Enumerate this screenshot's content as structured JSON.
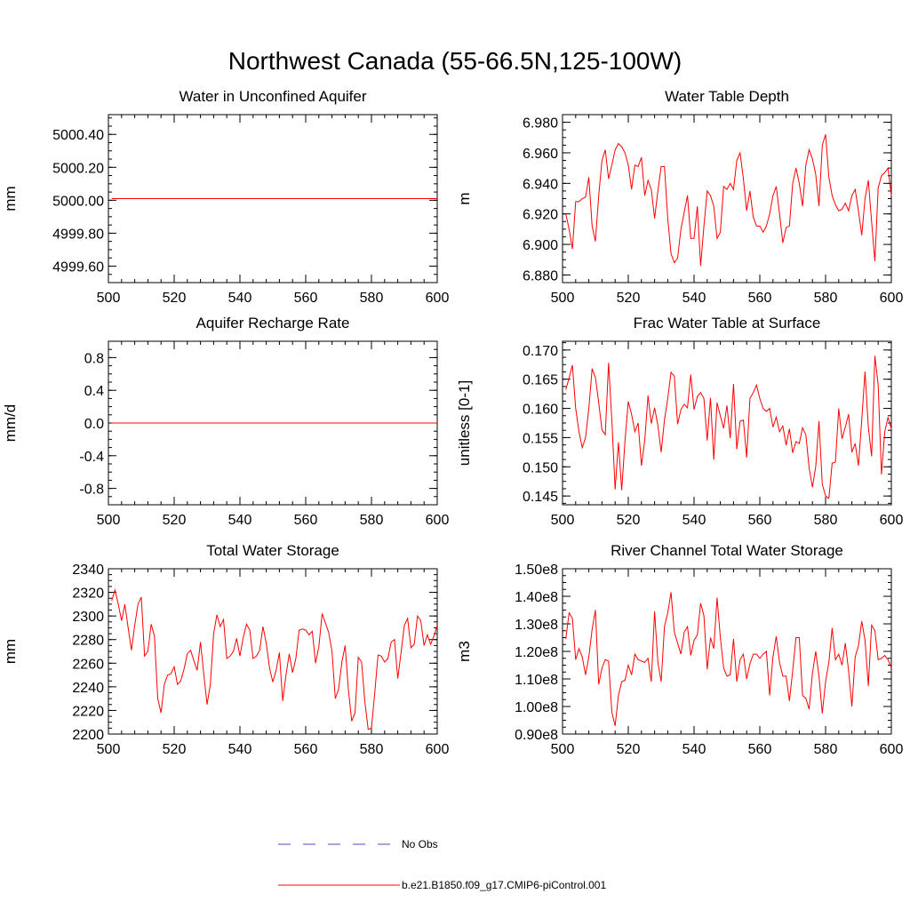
{
  "figure_title": "Northwest Canada (55-66.5N,125-100W)",
  "colors": {
    "model": "#ff0000",
    "obs": "#4b4bcc",
    "axis": "#000000"
  },
  "legend": {
    "obs_label": "No Obs",
    "model_label": "b.e21.B1850.f09_g17.CMIP6-piControl.001"
  },
  "chart_data": [
    {
      "type": "line",
      "title": "Water in Unconfined Aquifer",
      "xlabel": "",
      "ylabel": "mm",
      "xlim": [
        500,
        600
      ],
      "ylim": [
        4999.5,
        5000.52
      ],
      "xticks": [
        500,
        520,
        540,
        560,
        580,
        600
      ],
      "yticks": [
        4999.6,
        4999.8,
        5000.0,
        5000.2,
        5000.4
      ],
      "ytick_labels": [
        "4999.60",
        "4999.80",
        "5000.00",
        "5000.20",
        "5000.40"
      ],
      "series": [
        {
          "name": "b.e21.B1850.f09_g17.CMIP6-piControl.001",
          "x_start": 501,
          "x_step": 1,
          "constant": 5000.01,
          "count": 100
        }
      ]
    },
    {
      "type": "line",
      "title": "Water Table Depth",
      "xlabel": "",
      "ylabel": "m",
      "xlim": [
        500,
        600
      ],
      "ylim": [
        6.875,
        6.985
      ],
      "xticks": [
        500,
        520,
        540,
        560,
        580,
        600
      ],
      "yticks": [
        6.88,
        6.9,
        6.92,
        6.94,
        6.96,
        6.98
      ],
      "ytick_labels": [
        "6.880",
        "6.900",
        "6.920",
        "6.940",
        "6.960",
        "6.980"
      ],
      "series": [
        {
          "name": "b.e21.B1850.f09_g17.CMIP6-piControl.001",
          "x_start": 501,
          "x_step": 1,
          "values": [
            6.92,
            6.91,
            6.897,
            6.928,
            6.928,
            6.93,
            6.931,
            6.944,
            6.912,
            6.902,
            6.932,
            6.955,
            6.962,
            6.943,
            6.952,
            6.962,
            6.966,
            6.964,
            6.96,
            6.952,
            6.936,
            6.952,
            6.951,
            6.957,
            6.932,
            6.942,
            6.936,
            6.917,
            6.935,
            6.951,
            6.951,
            6.917,
            6.894,
            6.888,
            6.891,
            6.91,
            6.921,
            6.932,
            6.904,
            6.904,
            6.925,
            6.886,
            6.912,
            6.935,
            6.932,
            6.925,
            6.904,
            6.908,
            6.938,
            6.936,
            6.94,
            6.936,
            6.955,
            6.96,
            6.943,
            6.922,
            6.935,
            6.918,
            6.912,
            6.912,
            6.908,
            6.912,
            6.92,
            6.932,
            6.938,
            6.92,
            6.901,
            6.911,
            6.912,
            6.94,
            6.95,
            6.94,
            6.925,
            6.952,
            6.962,
            6.956,
            6.946,
            6.925,
            6.965,
            6.972,
            6.944,
            6.932,
            6.926,
            6.922,
            6.923,
            6.927,
            6.922,
            6.932,
            6.936,
            6.922,
            6.906,
            6.93,
            6.942,
            6.915,
            6.889,
            6.937,
            6.945,
            6.947,
            6.95,
            6.932
          ]
        }
      ]
    },
    {
      "type": "line",
      "title": "Aquifer Recharge Rate",
      "xlabel": "",
      "ylabel": "mm/d",
      "xlim": [
        500,
        600
      ],
      "ylim": [
        -1.0,
        1.0
      ],
      "xticks": [
        500,
        520,
        540,
        560,
        580,
        600
      ],
      "yticks": [
        -0.8,
        -0.4,
        0.0,
        0.4,
        0.8
      ],
      "ytick_labels": [
        "-0.8",
        "-0.4",
        "0.0",
        "0.4",
        "0.8"
      ],
      "series": [
        {
          "name": "b.e21.B1850.f09_g17.CMIP6-piControl.001",
          "x_start": 501,
          "x_step": 1,
          "constant": 0.0,
          "count": 100
        }
      ]
    },
    {
      "type": "line",
      "title": "Frac Water Table at Surface",
      "xlabel": "",
      "ylabel": "unitless [0-1]",
      "xlim": [
        500,
        600
      ],
      "ylim": [
        0.1435,
        0.1715
      ],
      "xticks": [
        500,
        520,
        540,
        560,
        580,
        600
      ],
      "yticks": [
        0.145,
        0.15,
        0.155,
        0.16,
        0.165,
        0.17
      ],
      "ytick_labels": [
        "0.145",
        "0.150",
        "0.155",
        "0.160",
        "0.165",
        "0.170"
      ],
      "series": [
        {
          "name": "b.e21.B1850.f09_g17.CMIP6-piControl.001",
          "x_start": 501,
          "x_step": 1,
          "values": [
            0.1632,
            0.1652,
            0.1674,
            0.16,
            0.156,
            0.1533,
            0.155,
            0.16,
            0.1668,
            0.1653,
            0.161,
            0.1563,
            0.1555,
            0.1678,
            0.158,
            0.1461,
            0.1542,
            0.146,
            0.1545,
            0.1612,
            0.159,
            0.156,
            0.1575,
            0.1502,
            0.1545,
            0.1622,
            0.1574,
            0.1601,
            0.1571,
            0.1525,
            0.158,
            0.1617,
            0.1662,
            0.1655,
            0.1573,
            0.1598,
            0.1607,
            0.1601,
            0.1658,
            0.1598,
            0.162,
            0.1627,
            0.1617,
            0.1545,
            0.1618,
            0.1512,
            0.161,
            0.1587,
            0.1566,
            0.1605,
            0.1549,
            0.1642,
            0.153,
            0.1578,
            0.158,
            0.1516,
            0.1617,
            0.1627,
            0.164,
            0.1617,
            0.16,
            0.1595,
            0.16,
            0.1568,
            0.1585,
            0.156,
            0.157,
            0.1537,
            0.1565,
            0.1524,
            0.1543,
            0.154,
            0.1567,
            0.1555,
            0.1498,
            0.1465,
            0.15,
            0.1578,
            0.147,
            0.145,
            0.1446,
            0.1506,
            0.1508,
            0.16,
            0.1548,
            0.1568,
            0.159,
            0.1525,
            0.154,
            0.1502,
            0.158,
            0.1663,
            0.1568,
            0.1518,
            0.169,
            0.164,
            0.1487,
            0.156,
            0.1585,
            0.1565
          ]
        }
      ]
    },
    {
      "type": "line",
      "title": "Total Water Storage",
      "xlabel": "",
      "ylabel": "mm",
      "xlim": [
        500,
        600
      ],
      "ylim": [
        2200,
        2340
      ],
      "xticks": [
        500,
        520,
        540,
        560,
        580,
        600
      ],
      "yticks": [
        2200,
        2220,
        2240,
        2260,
        2280,
        2300,
        2320,
        2340
      ],
      "ytick_labels": [
        "2200",
        "2220",
        "2240",
        "2260",
        "2280",
        "2300",
        "2320",
        "2340"
      ],
      "series": [
        {
          "name": "b.e21.B1850.f09_g17.CMIP6-piControl.001",
          "x_start": 501,
          "x_step": 1,
          "values": [
            2313,
            2322,
            2310,
            2296,
            2310,
            2290,
            2271,
            2292,
            2310,
            2316,
            2266,
            2270,
            2293,
            2283,
            2230,
            2218,
            2242,
            2250,
            2251,
            2257,
            2242,
            2245,
            2255,
            2268,
            2271,
            2262,
            2254,
            2278,
            2251,
            2225,
            2242,
            2285,
            2301,
            2291,
            2297,
            2264,
            2266,
            2270,
            2281,
            2266,
            2282,
            2293,
            2288,
            2264,
            2266,
            2271,
            2291,
            2277,
            2256,
            2244,
            2254,
            2269,
            2228,
            2250,
            2268,
            2252,
            2264,
            2288,
            2289,
            2288,
            2284,
            2287,
            2260,
            2274,
            2302,
            2294,
            2286,
            2270,
            2230,
            2238,
            2261,
            2275,
            2237,
            2211,
            2218,
            2265,
            2261,
            2227,
            2204,
            2205,
            2235,
            2267,
            2266,
            2261,
            2264,
            2278,
            2280,
            2247,
            2269,
            2292,
            2298,
            2273,
            2276,
            2300,
            2296,
            2275,
            2284,
            2276,
            2283,
            2292
          ]
        }
      ]
    },
    {
      "type": "line",
      "title": "River Channel Total Water Storage",
      "xlabel": "",
      "ylabel": "m3",
      "xlim": [
        500,
        600
      ],
      "ylim": [
        90000000,
        150000000
      ],
      "xticks": [
        500,
        520,
        540,
        560,
        580,
        600
      ],
      "yticks": [
        90000000,
        100000000,
        110000000,
        120000000,
        130000000,
        140000000,
        150000000
      ],
      "ytick_labels": [
        "0.90e8",
        "1.00e8",
        "1.10e8",
        "1.20e8",
        "1.30e8",
        "1.40e8",
        "1.50e8"
      ],
      "series": [
        {
          "name": "b.e21.B1850.f09_g17.CMIP6-piControl.001",
          "x_start": 501,
          "x_step": 1,
          "values": [
            124500000,
            134000000,
            132000000,
            117000000,
            121000000,
            118000000,
            111500000,
            118000000,
            128000000,
            135000000,
            108000000,
            114000000,
            117000000,
            116500000,
            98000000,
            93000000,
            104000000,
            109000000,
            109500000,
            115000000,
            111500000,
            119000000,
            117000000,
            116500000,
            116000000,
            117500000,
            109000000,
            134500000,
            116000000,
            109000000,
            129000000,
            134000000,
            141500000,
            127000000,
            123000000,
            119000000,
            127000000,
            129000000,
            118500000,
            124000000,
            126000000,
            137500000,
            133000000,
            113500000,
            125000000,
            121000000,
            139500000,
            125000000,
            114000000,
            111000000,
            111500000,
            124500000,
            109000000,
            117000000,
            119000000,
            110000000,
            115500000,
            119000000,
            119000000,
            117500000,
            119000000,
            120000000,
            104000000,
            118000000,
            125500000,
            116000000,
            111000000,
            111000000,
            102000000,
            113000000,
            125000000,
            125000000,
            104000000,
            103000000,
            99000000,
            112000000,
            120000000,
            111000000,
            97500000,
            109000000,
            116000000,
            128500000,
            117000000,
            119000000,
            115000000,
            123000000,
            113000000,
            100000000,
            118000000,
            122000000,
            131000000,
            124000000,
            107500000,
            129500000,
            127500000,
            117000000,
            117500000,
            118500000,
            117000000,
            114000000
          ]
        }
      ]
    }
  ]
}
